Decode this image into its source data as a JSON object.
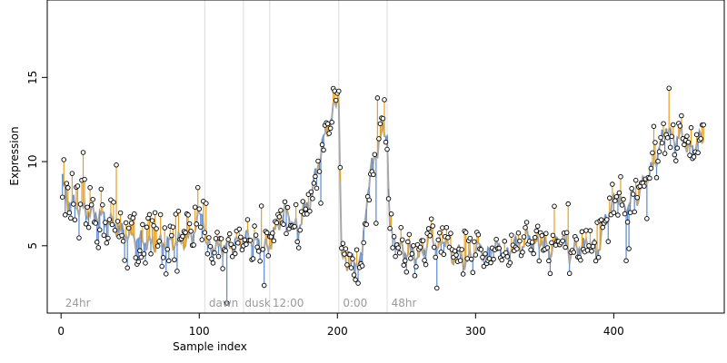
{
  "chart_data": {
    "type": "scatter",
    "title": "",
    "xlabel": "Sample index",
    "ylabel": "Expression",
    "xlim": [
      -10,
      480
    ],
    "ylim": [
      1.0,
      19.6
    ],
    "xticks": [
      0,
      100,
      200,
      300,
      400
    ],
    "yticks": [
      5,
      10,
      15
    ],
    "grid": false,
    "phase_boundaries": [
      104,
      132,
      151,
      201,
      236
    ],
    "phase_labels": [
      {
        "x": 3,
        "text": "24hr"
      },
      {
        "x": 107,
        "text": "dawn"
      },
      {
        "x": 133,
        "text": "dusk"
      },
      {
        "x": 153,
        "text": "12:00"
      },
      {
        "x": 204,
        "text": "0:00"
      },
      {
        "x": 239,
        "text": "48hr"
      }
    ],
    "colors": {
      "fitted_line": "#a8a8a8",
      "residual_positive": "#e8a020",
      "residual_negative": "#5a8ad0",
      "point_stroke": "#000000",
      "point_fill": "#ffffff",
      "phase_line": "#dcdcdc"
    },
    "keypoints": [
      [
        1,
        8.8
      ],
      [
        5,
        7.6
      ],
      [
        10,
        7.4
      ],
      [
        15,
        7.2
      ],
      [
        20,
        7.0
      ],
      [
        25,
        6.9
      ],
      [
        30,
        6.7
      ],
      [
        35,
        6.5
      ],
      [
        40,
        6.1
      ],
      [
        45,
        5.8
      ],
      [
        50,
        5.6
      ],
      [
        55,
        5.4
      ],
      [
        60,
        5.3
      ],
      [
        65,
        5.1
      ],
      [
        70,
        5.1
      ],
      [
        75,
        5.2
      ],
      [
        80,
        5.2
      ],
      [
        85,
        5.3
      ],
      [
        90,
        5.3
      ],
      [
        95,
        5.6
      ],
      [
        100,
        6.8
      ],
      [
        103,
        6.9
      ],
      [
        105,
        5.0
      ],
      [
        110,
        4.9
      ],
      [
        115,
        4.9
      ],
      [
        120,
        5.0
      ],
      [
        125,
        5.1
      ],
      [
        130,
        5.3
      ],
      [
        135,
        5.5
      ],
      [
        140,
        5.3
      ],
      [
        145,
        5.0
      ],
      [
        150,
        4.8
      ],
      [
        153,
        5.6
      ],
      [
        158,
        6.4
      ],
      [
        163,
        7.1
      ],
      [
        168,
        6.2
      ],
      [
        172,
        6.0
      ],
      [
        175,
        7.0
      ],
      [
        180,
        7.6
      ],
      [
        185,
        9.5
      ],
      [
        190,
        11.3
      ],
      [
        195,
        12.4
      ],
      [
        200,
        13.8
      ],
      [
        201,
        13.9
      ],
      [
        203,
        4.2
      ],
      [
        208,
        4.0
      ],
      [
        213,
        3.9
      ],
      [
        218,
        4.4
      ],
      [
        221,
        7.6
      ],
      [
        224,
        9.4
      ],
      [
        229,
        10.8
      ],
      [
        233,
        11.8
      ],
      [
        236,
        11.7
      ],
      [
        238,
        5.8
      ],
      [
        243,
        5.2
      ],
      [
        248,
        4.6
      ],
      [
        253,
        4.8
      ],
      [
        258,
        4.3
      ],
      [
        263,
        4.8
      ],
      [
        268,
        5.6
      ],
      [
        273,
        4.8
      ],
      [
        278,
        5.5
      ],
      [
        283,
        4.2
      ],
      [
        288,
        4.6
      ],
      [
        293,
        3.9
      ],
      [
        298,
        4.5
      ],
      [
        303,
        5.0
      ],
      [
        308,
        4.2
      ],
      [
        313,
        5.1
      ],
      [
        318,
        4.8
      ],
      [
        323,
        4.3
      ],
      [
        328,
        5.3
      ],
      [
        333,
        4.8
      ],
      [
        338,
        5.7
      ],
      [
        343,
        5.0
      ],
      [
        348,
        5.4
      ],
      [
        353,
        4.6
      ],
      [
        358,
        5.1
      ],
      [
        363,
        5.6
      ],
      [
        368,
        4.5
      ],
      [
        373,
        4.9
      ],
      [
        378,
        5.0
      ],
      [
        383,
        5.2
      ],
      [
        388,
        4.6
      ],
      [
        393,
        6.3
      ],
      [
        398,
        7.2
      ],
      [
        403,
        8.1
      ],
      [
        408,
        7.0
      ],
      [
        413,
        8.0
      ],
      [
        418,
        7.9
      ],
      [
        423,
        9.1
      ],
      [
        428,
        9.5
      ],
      [
        433,
        10.8
      ],
      [
        438,
        12.1
      ],
      [
        443,
        11.2
      ],
      [
        448,
        11.6
      ],
      [
        453,
        11.0
      ],
      [
        458,
        10.5
      ],
      [
        461,
        11.4
      ],
      [
        465,
        11.2
      ]
    ]
  }
}
